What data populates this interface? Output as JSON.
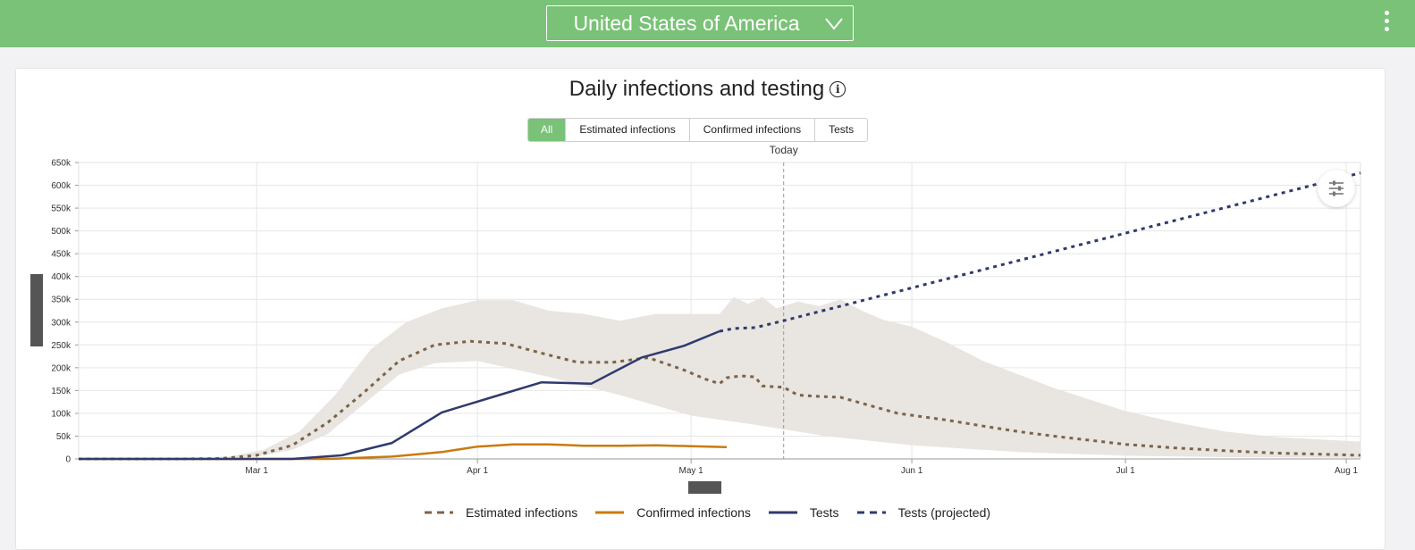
{
  "header": {
    "country": "United States of America",
    "chevron_icon": "chevron-down-icon",
    "menu_icon": "more-vertical-icon",
    "bg_color": "#79c277"
  },
  "chart_card": {
    "title": "Daily infections and testing",
    "info_icon": "info-icon",
    "tabs": [
      {
        "label": "All",
        "active": true
      },
      {
        "label": "Estimated infections",
        "active": false
      },
      {
        "label": "Confirmed infections",
        "active": false
      },
      {
        "label": "Tests",
        "active": false
      }
    ],
    "today_label": "Today",
    "settings_icon": "sliders-icon"
  },
  "chart_data": {
    "type": "line",
    "x_domain": [
      "2020-02-05",
      "2020-08-03"
    ],
    "ylim": [
      0,
      650000
    ],
    "y_ticks": [
      "0",
      "50k",
      "100k",
      "150k",
      "200k",
      "250k",
      "300k",
      "350k",
      "400k",
      "450k",
      "500k",
      "550k",
      "600k",
      "650k"
    ],
    "x_ticks": [
      {
        "label": "Mar 1",
        "date": "2020-03-01"
      },
      {
        "label": "Apr 1",
        "date": "2020-04-01"
      },
      {
        "label": "May 1",
        "date": "2020-05-01"
      },
      {
        "label": "Jun 1",
        "date": "2020-06-01"
      },
      {
        "label": "Jul 1",
        "date": "2020-07-01"
      },
      {
        "label": "Aug 1",
        "date": "2020-08-01"
      }
    ],
    "today": "2020-05-14",
    "grid": true,
    "legend_position": "bottom",
    "band": {
      "upper": [
        [
          "2020-02-05",
          0
        ],
        [
          "2020-02-25",
          2000
        ],
        [
          "2020-03-02",
          20000
        ],
        [
          "2020-03-07",
          60000
        ],
        [
          "2020-03-12",
          140000
        ],
        [
          "2020-03-17",
          240000
        ],
        [
          "2020-03-22",
          300000
        ],
        [
          "2020-03-27",
          330000
        ],
        [
          "2020-04-01",
          348000
        ],
        [
          "2020-04-06",
          348000
        ],
        [
          "2020-04-11",
          325000
        ],
        [
          "2020-04-16",
          318000
        ],
        [
          "2020-04-21",
          303000
        ],
        [
          "2020-04-26",
          318000
        ],
        [
          "2020-05-01",
          318000
        ],
        [
          "2020-05-05",
          318000
        ],
        [
          "2020-05-07",
          355000
        ],
        [
          "2020-05-09",
          340000
        ],
        [
          "2020-05-11",
          355000
        ],
        [
          "2020-05-13",
          330000
        ],
        [
          "2020-05-16",
          345000
        ],
        [
          "2020-05-19",
          335000
        ],
        [
          "2020-05-22",
          350000
        ],
        [
          "2020-05-25",
          325000
        ],
        [
          "2020-05-28",
          305000
        ],
        [
          "2020-06-01",
          290000
        ],
        [
          "2020-06-06",
          255000
        ],
        [
          "2020-06-11",
          215000
        ],
        [
          "2020-06-16",
          185000
        ],
        [
          "2020-06-21",
          155000
        ],
        [
          "2020-06-26",
          130000
        ],
        [
          "2020-07-01",
          105000
        ],
        [
          "2020-07-08",
          80000
        ],
        [
          "2020-07-15",
          60000
        ],
        [
          "2020-07-22",
          48000
        ],
        [
          "2020-08-03",
          38000
        ]
      ],
      "lower": [
        [
          "2020-08-03",
          2000
        ],
        [
          "2020-07-15",
          4000
        ],
        [
          "2020-07-01",
          7000
        ],
        [
          "2020-06-16",
          15000
        ],
        [
          "2020-06-01",
          30000
        ],
        [
          "2020-05-20",
          50000
        ],
        [
          "2020-05-10",
          75000
        ],
        [
          "2020-05-01",
          95000
        ],
        [
          "2020-04-21",
          140000
        ],
        [
          "2020-04-11",
          180000
        ],
        [
          "2020-04-01",
          215000
        ],
        [
          "2020-03-26",
          210000
        ],
        [
          "2020-03-21",
          185000
        ],
        [
          "2020-03-16",
          120000
        ],
        [
          "2020-03-11",
          55000
        ],
        [
          "2020-03-06",
          20000
        ],
        [
          "2020-03-01",
          5000
        ],
        [
          "2020-02-20",
          0
        ],
        [
          "2020-02-05",
          0
        ]
      ]
    },
    "series": [
      {
        "name": "Estimated infections",
        "color": "#7b6448",
        "dash": "dotted",
        "points": [
          [
            "2020-02-05",
            0
          ],
          [
            "2020-02-20",
            0
          ],
          [
            "2020-02-25",
            1000
          ],
          [
            "2020-03-01",
            8000
          ],
          [
            "2020-03-06",
            30000
          ],
          [
            "2020-03-11",
            80000
          ],
          [
            "2020-03-16",
            145000
          ],
          [
            "2020-03-21",
            215000
          ],
          [
            "2020-03-26",
            250000
          ],
          [
            "2020-03-31",
            258000
          ],
          [
            "2020-04-05",
            253000
          ],
          [
            "2020-04-10",
            232000
          ],
          [
            "2020-04-15",
            212000
          ],
          [
            "2020-04-20",
            212000
          ],
          [
            "2020-04-25",
            222000
          ],
          [
            "2020-04-30",
            195000
          ],
          [
            "2020-05-03",
            175000
          ],
          [
            "2020-05-05",
            165000
          ],
          [
            "2020-05-06",
            178000
          ],
          [
            "2020-05-08",
            182000
          ],
          [
            "2020-05-10",
            180000
          ],
          [
            "2020-05-11",
            160000
          ],
          [
            "2020-05-14",
            157000
          ],
          [
            "2020-05-16",
            140000
          ],
          [
            "2020-05-19",
            137000
          ],
          [
            "2020-05-22",
            135000
          ],
          [
            "2020-05-25",
            122000
          ],
          [
            "2020-05-30",
            100000
          ],
          [
            "2020-06-06",
            85000
          ],
          [
            "2020-06-11",
            72000
          ],
          [
            "2020-06-16",
            60000
          ],
          [
            "2020-06-21",
            50000
          ],
          [
            "2020-06-26",
            41000
          ],
          [
            "2020-07-01",
            32000
          ],
          [
            "2020-07-08",
            24000
          ],
          [
            "2020-07-15",
            18000
          ],
          [
            "2020-07-22",
            13000
          ],
          [
            "2020-08-03",
            8000
          ]
        ]
      },
      {
        "name": "Confirmed infections",
        "color": "#c97a0e",
        "dash": "solid",
        "points": [
          [
            "2020-02-05",
            0
          ],
          [
            "2020-03-11",
            0
          ],
          [
            "2020-03-20",
            5000
          ],
          [
            "2020-03-27",
            15000
          ],
          [
            "2020-04-01",
            27000
          ],
          [
            "2020-04-06",
            32000
          ],
          [
            "2020-04-11",
            32000
          ],
          [
            "2020-04-16",
            29000
          ],
          [
            "2020-04-21",
            29000
          ],
          [
            "2020-04-26",
            30000
          ],
          [
            "2020-05-01",
            28000
          ],
          [
            "2020-05-06",
            26000
          ]
        ]
      },
      {
        "name": "Tests",
        "color": "#2f3a6e",
        "dash": "solid",
        "points": [
          [
            "2020-02-05",
            0
          ],
          [
            "2020-03-06",
            0
          ],
          [
            "2020-03-13",
            8000
          ],
          [
            "2020-03-20",
            35000
          ],
          [
            "2020-03-27",
            102000
          ],
          [
            "2020-04-03",
            135000
          ],
          [
            "2020-04-10",
            168000
          ],
          [
            "2020-04-17",
            165000
          ],
          [
            "2020-04-24",
            222000
          ],
          [
            "2020-04-30",
            248000
          ],
          [
            "2020-05-05",
            280000
          ]
        ]
      },
      {
        "name": "Tests (projected)",
        "color": "#2f3a6e",
        "dash": "dotted",
        "points": [
          [
            "2020-05-05",
            280000
          ],
          [
            "2020-05-07",
            286000
          ],
          [
            "2020-05-10",
            288000
          ],
          [
            "2020-05-14",
            303000
          ],
          [
            "2020-08-03",
            627000
          ]
        ]
      }
    ]
  }
}
